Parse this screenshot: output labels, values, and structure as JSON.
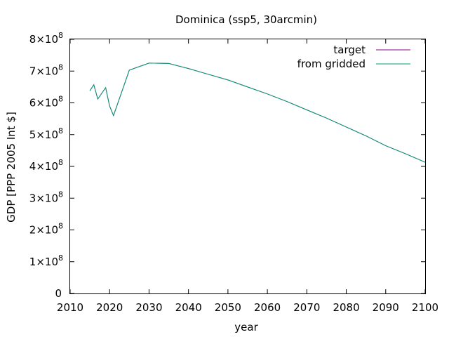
{
  "chart_data": {
    "type": "line",
    "title": "Dominica (ssp5, 30arcmin)",
    "xlabel": "year",
    "ylabel": "GDP [PPP 2005 Int $]",
    "xlim": [
      2010,
      2100
    ],
    "ylim": [
      0,
      800000000
    ],
    "x_ticks": [
      2010,
      2020,
      2030,
      2040,
      2050,
      2060,
      2070,
      2080,
      2090,
      2100
    ],
    "y_ticks": [
      {
        "value": 0,
        "mantissa": "0",
        "base": "",
        "exp": ""
      },
      {
        "value": 100000000,
        "mantissa": "1",
        "base": "×10",
        "exp": "8"
      },
      {
        "value": 200000000,
        "mantissa": "2",
        "base": "×10",
        "exp": "8"
      },
      {
        "value": 300000000,
        "mantissa": "3",
        "base": "×10",
        "exp": "8"
      },
      {
        "value": 400000000,
        "mantissa": "4",
        "base": "×10",
        "exp": "8"
      },
      {
        "value": 500000000,
        "mantissa": "5",
        "base": "×10",
        "exp": "8"
      },
      {
        "value": 600000000,
        "mantissa": "6",
        "base": "×10",
        "exp": "8"
      },
      {
        "value": 700000000,
        "mantissa": "7",
        "base": "×10",
        "exp": "8"
      },
      {
        "value": 800000000,
        "mantissa": "8",
        "base": "×10",
        "exp": "8"
      }
    ],
    "grid": false,
    "legend_position": "top-right",
    "series": [
      {
        "name": "target",
        "color": "#8b008b",
        "x": [
          2015,
          2016,
          2017,
          2018,
          2019,
          2020,
          2021,
          2025,
          2030,
          2035,
          2040,
          2045,
          2050,
          2055,
          2060,
          2065,
          2070,
          2075,
          2080,
          2085,
          2090,
          2095,
          2100
        ],
        "y": [
          638000000,
          657000000,
          612000000,
          630000000,
          648000000,
          590000000,
          560000000,
          703000000,
          725000000,
          724000000,
          708000000,
          690000000,
          672000000,
          650000000,
          628000000,
          604000000,
          578000000,
          552000000,
          524000000,
          496000000,
          465000000,
          440000000,
          413000000
        ]
      },
      {
        "name": "from gridded",
        "color": "#009e73",
        "x": [
          2015,
          2016,
          2017,
          2018,
          2019,
          2020,
          2021,
          2025,
          2030,
          2035,
          2040,
          2045,
          2050,
          2055,
          2060,
          2065,
          2070,
          2075,
          2080,
          2085,
          2090,
          2095,
          2100
        ],
        "y": [
          638000000,
          657000000,
          612000000,
          630000000,
          648000000,
          590000000,
          560000000,
          703000000,
          725000000,
          724000000,
          708000000,
          690000000,
          672000000,
          650000000,
          628000000,
          604000000,
          578000000,
          552000000,
          524000000,
          496000000,
          465000000,
          440000000,
          413000000
        ]
      }
    ]
  }
}
